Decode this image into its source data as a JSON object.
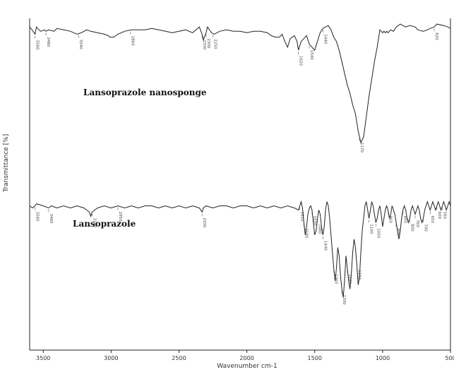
{
  "chart_data": {
    "type": "line",
    "xlabel": "Wavenumber cm-1",
    "ylabel": "Transmittance [%]",
    "xlim": [
      3600,
      500
    ],
    "x_ticks": [
      3500,
      3000,
      2500,
      2000,
      1500,
      1000,
      500
    ],
    "x_tick_labels": [
      "3500",
      "3000",
      "2500",
      "2000",
      "1500",
      "1000",
      "500"
    ],
    "grid": false,
    "series": [
      {
        "name": "Lansoprazole nanosponge",
        "x": [
          3600,
          3590,
          3560,
          3550,
          3540,
          3520,
          3490,
          3480,
          3460,
          3420,
          3400,
          3350,
          3300,
          3250,
          3220,
          3180,
          3150,
          3100,
          3050,
          3020,
          3010,
          2980,
          2950,
          2900,
          2850,
          2800,
          2750,
          2700,
          2650,
          2600,
          2550,
          2500,
          2450,
          2400,
          2350,
          2330,
          2320,
          2300,
          2290,
          2260,
          2240,
          2200,
          2150,
          2100,
          2050,
          2000,
          1950,
          1900,
          1850,
          1820,
          1790,
          1760,
          1740,
          1720,
          1700,
          1680,
          1650,
          1630,
          1620,
          1600,
          1560,
          1540,
          1500,
          1480,
          1460,
          1440,
          1420,
          1400,
          1380,
          1360,
          1340,
          1320,
          1300,
          1280,
          1260,
          1240,
          1220,
          1200,
          1180,
          1160,
          1140,
          1120,
          1100,
          1080,
          1060,
          1040,
          1030,
          1020,
          1010,
          1000,
          990,
          980,
          970,
          960,
          940,
          920,
          900,
          870,
          850,
          830,
          800,
          760,
          740,
          700,
          670,
          650,
          620,
          600,
          550,
          520,
          500
        ],
        "y": [
          96,
          95,
          91,
          96,
          95,
          93,
          94,
          93,
          94,
          93,
          95,
          94,
          93,
          91,
          92,
          94,
          93,
          92,
          91,
          90,
          89,
          89,
          91,
          93,
          94,
          94,
          94,
          95,
          94,
          93,
          92,
          93,
          94,
          92,
          96,
          91,
          87,
          92,
          96,
          92,
          91,
          93,
          94,
          93,
          93,
          92,
          93,
          93,
          92,
          90,
          89,
          89,
          91,
          86,
          82,
          88,
          90,
          86,
          80,
          86,
          90,
          84,
          80,
          86,
          92,
          95,
          96,
          97,
          94,
          89,
          86,
          80,
          72,
          64,
          56,
          50,
          42,
          36,
          24,
          16,
          20,
          34,
          48,
          60,
          72,
          82,
          88,
          94,
          93,
          92,
          93,
          92,
          93,
          92,
          94,
          93,
          96,
          98,
          97,
          96,
          97,
          96,
          94,
          93,
          94,
          95,
          96,
          98,
          97,
          96,
          95
        ]
      },
      {
        "name": "Lansoprazole",
        "x": [
          3600,
          3580,
          3560,
          3550,
          3500,
          3460,
          3440,
          3400,
          3350,
          3300,
          3250,
          3200,
          3160,
          3150,
          3140,
          3100,
          3050,
          3000,
          2950,
          2900,
          2850,
          2800,
          2750,
          2700,
          2650,
          2600,
          2550,
          2500,
          2450,
          2400,
          2350,
          2330,
          2320,
          2300,
          2250,
          2200,
          2150,
          2100,
          2050,
          2000,
          1950,
          1900,
          1850,
          1800,
          1750,
          1700,
          1650,
          1620,
          1610,
          1600,
          1590,
          1580,
          1570,
          1560,
          1550,
          1540,
          1530,
          1520,
          1510,
          1500,
          1490,
          1480,
          1470,
          1460,
          1450,
          1440,
          1430,
          1420,
          1410,
          1400,
          1390,
          1380,
          1370,
          1360,
          1350,
          1340,
          1330,
          1320,
          1310,
          1300,
          1290,
          1280,
          1270,
          1260,
          1250,
          1240,
          1230,
          1220,
          1210,
          1200,
          1190,
          1180,
          1170,
          1160,
          1150,
          1140,
          1130,
          1120,
          1110,
          1100,
          1090,
          1080,
          1070,
          1060,
          1050,
          1040,
          1030,
          1020,
          1010,
          1000,
          990,
          980,
          970,
          960,
          950,
          940,
          930,
          920,
          910,
          900,
          890,
          880,
          870,
          860,
          850,
          840,
          830,
          820,
          810,
          800,
          790,
          780,
          770,
          760,
          750,
          740,
          730,
          720,
          710,
          700,
          690,
          680,
          670,
          660,
          650,
          640,
          630,
          620,
          610,
          600,
          590,
          580,
          570,
          560,
          550,
          540,
          530,
          520,
          510,
          500
        ],
        "y": [
          52,
          51,
          52,
          53,
          52,
          51,
          52,
          51,
          52,
          51,
          52,
          51,
          49,
          47,
          49,
          51,
          52,
          51,
          52,
          51,
          52,
          51,
          52,
          52,
          51,
          52,
          51,
          52,
          51,
          52,
          51,
          49,
          51,
          52,
          51,
          52,
          52,
          51,
          52,
          52,
          51,
          52,
          51,
          52,
          51,
          52,
          51,
          50,
          52,
          54,
          51,
          44,
          38,
          42,
          48,
          51,
          52,
          50,
          44,
          38,
          40,
          46,
          50,
          48,
          42,
          38,
          42,
          50,
          54,
          52,
          46,
          38,
          30,
          22,
          16,
          22,
          32,
          28,
          18,
          12,
          8,
          16,
          28,
          22,
          16,
          12,
          20,
          30,
          36,
          32,
          24,
          14,
          18,
          30,
          40,
          46,
          52,
          54,
          50,
          46,
          50,
          54,
          52,
          48,
          44,
          46,
          50,
          52,
          48,
          42,
          46,
          50,
          52,
          50,
          46,
          48,
          52,
          50,
          48,
          44,
          40,
          36,
          40,
          46,
          50,
          52,
          50,
          46,
          44,
          46,
          50,
          52,
          50,
          48,
          50,
          52,
          50,
          46,
          44,
          46,
          50,
          52,
          54,
          52,
          50,
          52,
          54,
          52,
          50,
          52,
          54,
          52,
          50,
          52,
          54,
          52,
          50,
          52,
          54,
          52
        ]
      }
    ],
    "annotations_top": [
      {
        "x": 3560,
        "label": "3560"
      },
      {
        "x": 3480,
        "label": "3480"
      },
      {
        "x": 3240,
        "label": "3240"
      },
      {
        "x": 2860,
        "label": "2860"
      },
      {
        "x": 2330,
        "label": "2330"
      },
      {
        "x": 2300,
        "label": "2300"
      },
      {
        "x": 2250,
        "label": "2250"
      },
      {
        "x": 1620,
        "label": "1620"
      },
      {
        "x": 1540,
        "label": "1540"
      },
      {
        "x": 1440,
        "label": "1440"
      },
      {
        "x": 1170,
        "label": "1170"
      },
      {
        "x": 620,
        "label": "620"
      }
    ],
    "annotations_bottom": [
      {
        "x": 3560,
        "label": "3560"
      },
      {
        "x": 3460,
        "label": "3460"
      },
      {
        "x": 3140,
        "label": "3140"
      },
      {
        "x": 2950,
        "label": "2950"
      },
      {
        "x": 2330,
        "label": "2330"
      },
      {
        "x": 1610,
        "label": "1610"
      },
      {
        "x": 1580,
        "label": "1580"
      },
      {
        "x": 1520,
        "label": "1520"
      },
      {
        "x": 1480,
        "label": "1480"
      },
      {
        "x": 1440,
        "label": "1440"
      },
      {
        "x": 1360,
        "label": "1360"
      },
      {
        "x": 1300,
        "label": "1300"
      },
      {
        "x": 1260,
        "label": "1260"
      },
      {
        "x": 1190,
        "label": "1190"
      },
      {
        "x": 1100,
        "label": "1100"
      },
      {
        "x": 1050,
        "label": "1050"
      },
      {
        "x": 960,
        "label": "960"
      },
      {
        "x": 900,
        "label": "900"
      },
      {
        "x": 850,
        "label": "850"
      },
      {
        "x": 800,
        "label": "800"
      },
      {
        "x": 760,
        "label": "760"
      },
      {
        "x": 700,
        "label": "700"
      },
      {
        "x": 650,
        "label": "650"
      },
      {
        "x": 600,
        "label": "600"
      },
      {
        "x": 560,
        "label": "560"
      }
    ]
  }
}
